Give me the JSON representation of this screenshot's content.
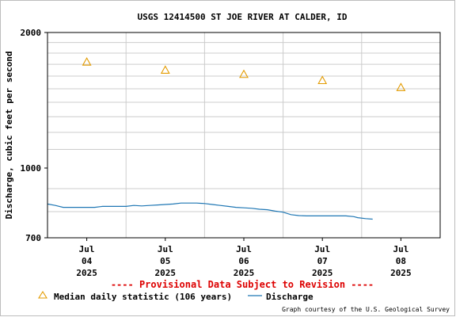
{
  "chart_data": {
    "type": "line",
    "title": "USGS 12414500 ST JOE RIVER AT CALDER, ID",
    "ylabel": "Discharge, cubic feet per second",
    "xlabel": "",
    "y_scale": "log",
    "ylim": [
      700,
      2000
    ],
    "y_ticks": [
      "2000",
      "1000",
      "700"
    ],
    "y_minor_ticks": [
      800,
      900,
      1100,
      1200,
      1300,
      1400,
      1500,
      1600,
      1700,
      1800,
      1900
    ],
    "xlim_days": [
      3.5,
      8.5
    ],
    "x_ticks": [
      {
        "day": 4,
        "l1": "Jul",
        "l2": "04",
        "l3": "2025"
      },
      {
        "day": 5,
        "l1": "Jul",
        "l2": "05",
        "l3": "2025"
      },
      {
        "day": 6,
        "l1": "Jul",
        "l2": "06",
        "l3": "2025"
      },
      {
        "day": 7,
        "l1": "Jul",
        "l2": "07",
        "l3": "2025"
      },
      {
        "day": 8,
        "l1": "Jul",
        "l2": "08",
        "l3": "2025"
      }
    ],
    "grid": true,
    "series": [
      {
        "name": "Discharge",
        "style": "line",
        "color": "#1f77b4",
        "points": [
          [
            3.5,
            832
          ],
          [
            3.6,
            826
          ],
          [
            3.7,
            818
          ],
          [
            3.8,
            818
          ],
          [
            3.9,
            818
          ],
          [
            4.0,
            818
          ],
          [
            4.1,
            818
          ],
          [
            4.2,
            822
          ],
          [
            4.3,
            822
          ],
          [
            4.4,
            822
          ],
          [
            4.5,
            822
          ],
          [
            4.6,
            826
          ],
          [
            4.7,
            824
          ],
          [
            4.8,
            826
          ],
          [
            4.9,
            828
          ],
          [
            5.0,
            830
          ],
          [
            5.1,
            832
          ],
          [
            5.2,
            836
          ],
          [
            5.3,
            836
          ],
          [
            5.4,
            836
          ],
          [
            5.5,
            834
          ],
          [
            5.6,
            830
          ],
          [
            5.7,
            826
          ],
          [
            5.8,
            822
          ],
          [
            5.9,
            818
          ],
          [
            6.0,
            816
          ],
          [
            6.1,
            814
          ],
          [
            6.2,
            810
          ],
          [
            6.3,
            808
          ],
          [
            6.4,
            802
          ],
          [
            6.5,
            798
          ],
          [
            6.6,
            788
          ],
          [
            6.7,
            784
          ],
          [
            6.8,
            783
          ],
          [
            6.9,
            783
          ],
          [
            7.0,
            783
          ],
          [
            7.1,
            783
          ],
          [
            7.2,
            783
          ],
          [
            7.3,
            783
          ],
          [
            7.4,
            780
          ],
          [
            7.45,
            776
          ],
          [
            7.55,
            772
          ],
          [
            7.64,
            770
          ]
        ]
      },
      {
        "name": "Median daily statistic (106 years)",
        "style": "marker",
        "color": "#e39b00",
        "points": [
          [
            4,
            1720
          ],
          [
            5,
            1650
          ],
          [
            6,
            1615
          ],
          [
            7,
            1565
          ],
          [
            8,
            1510
          ]
        ]
      }
    ],
    "annotation": "---- Provisional Data Subject to Revision ----",
    "legend": [
      {
        "symbol": "triangle",
        "label": "Median daily statistic (106 years)"
      },
      {
        "symbol": "line",
        "label": "Discharge"
      }
    ],
    "credit": "Graph courtesy of the U.S. Geological Survey"
  }
}
